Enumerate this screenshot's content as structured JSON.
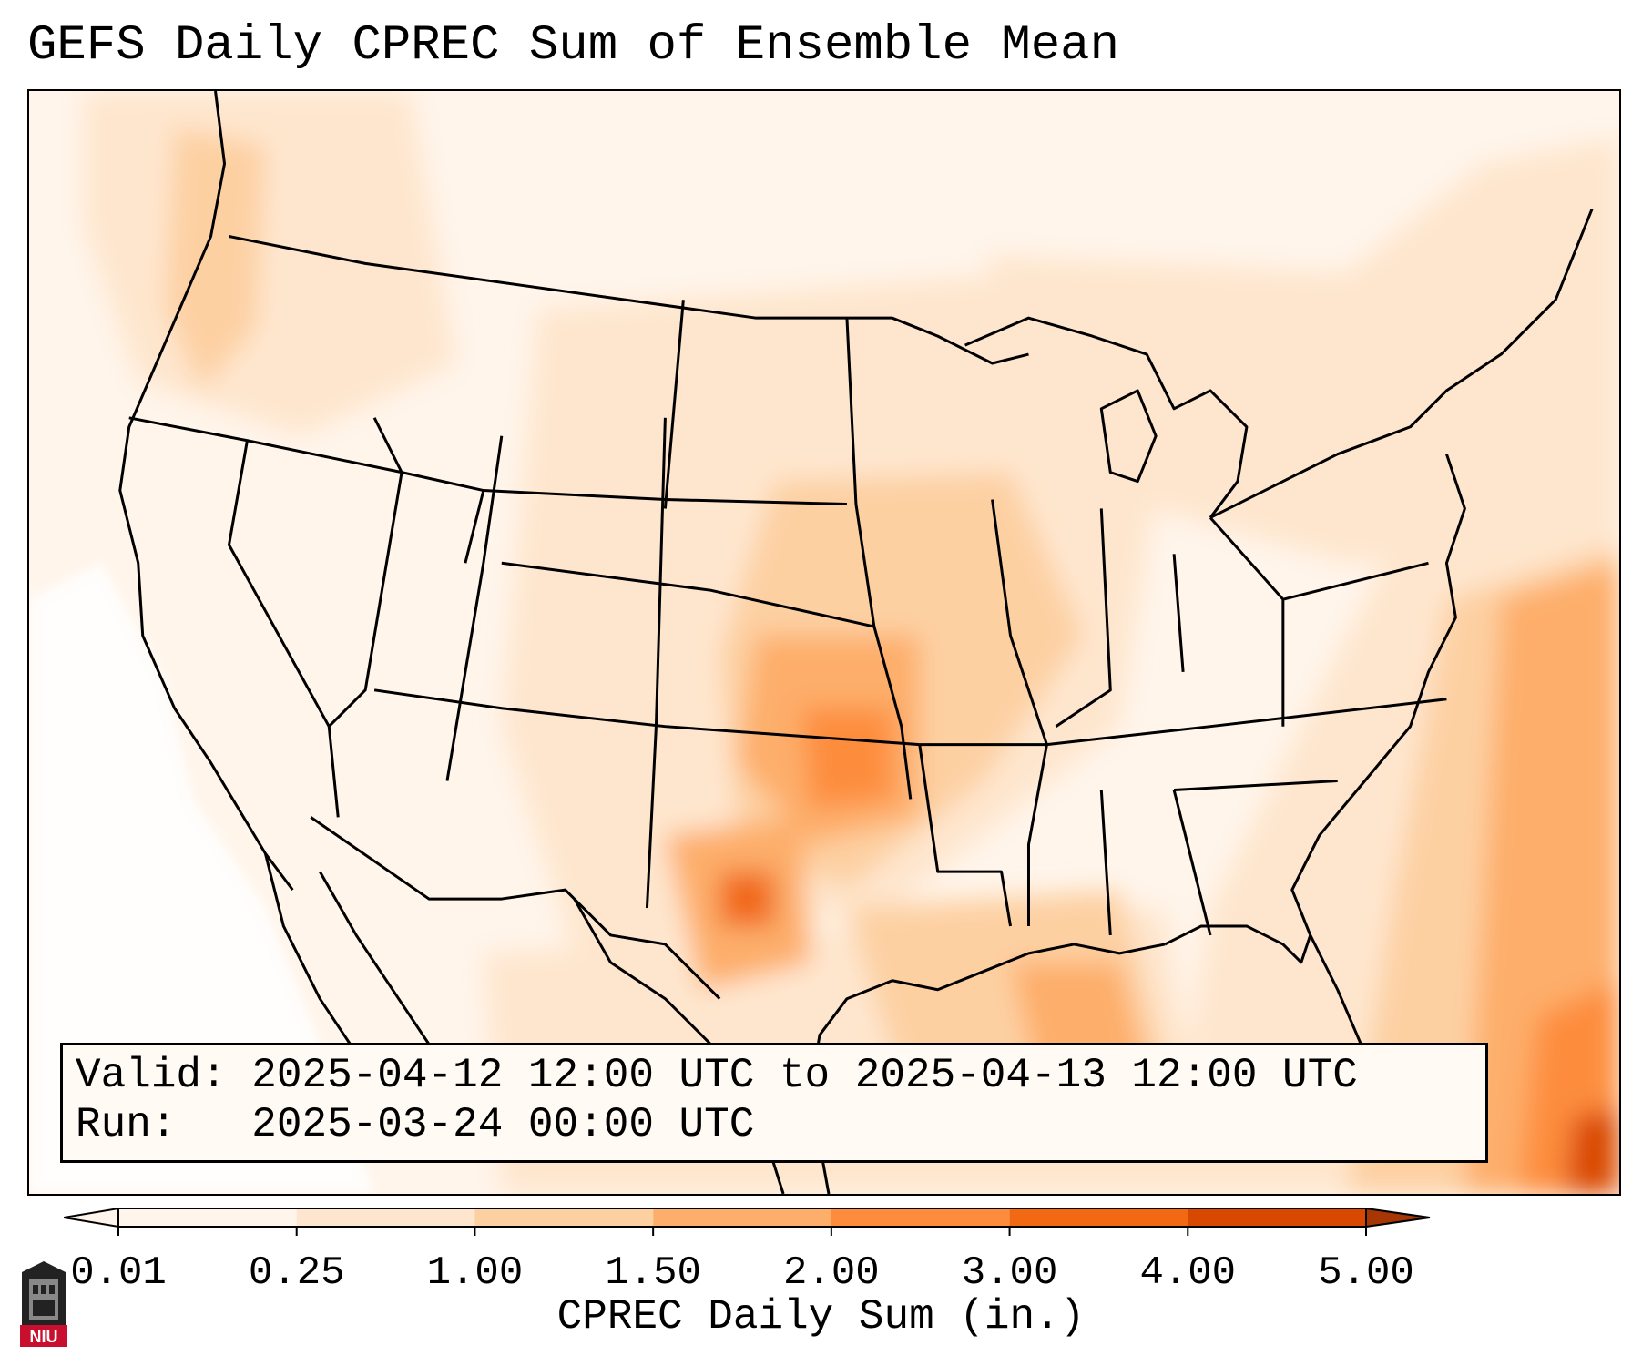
{
  "title": "GEFS Daily CPREC Sum of Ensemble Mean",
  "info": {
    "valid_label": "Valid:",
    "valid_value": "2025-04-12 12:00 UTC to 2025-04-13 12:00 UTC",
    "run_label": "Run:",
    "run_value": "2025-03-24 00:00 UTC"
  },
  "colorbar": {
    "label": "CPREC Daily Sum (in.)",
    "ticks": [
      "0.01",
      "0.25",
      "1.00",
      "1.50",
      "2.00",
      "3.00",
      "4.00",
      "5.00"
    ],
    "colors": [
      "#fff5eb",
      "#fee6ce",
      "#fdd0a2",
      "#fdae6b",
      "#fd8d3c",
      "#f16913",
      "#d94801",
      "#a63603"
    ],
    "extend": "both"
  },
  "logo": {
    "text": "NIU",
    "color": "#c8102e"
  }
}
